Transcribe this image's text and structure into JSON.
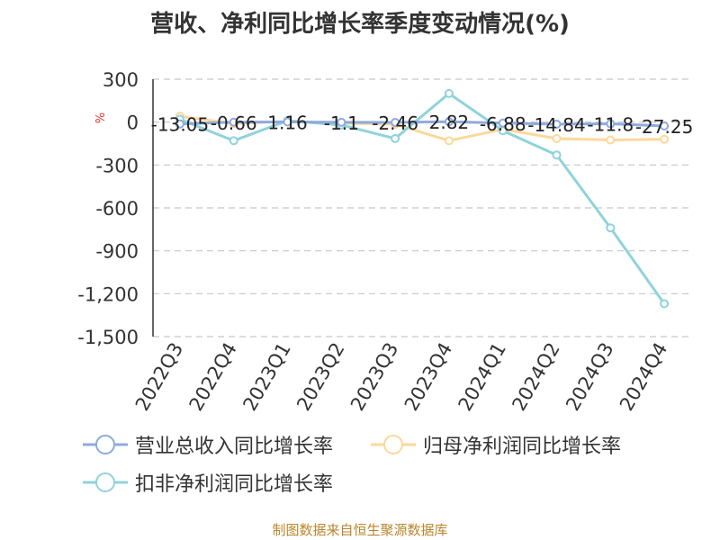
{
  "title": "营收、净利同比增长率季度变动情况(%)",
  "footer": "制图数据来自恒生聚源数据库",
  "chart_data": {
    "type": "line",
    "title": "营收、净利同比增长率季度变动情况(%)",
    "ylabel": "%",
    "ylim": [
      -1500,
      300
    ],
    "yticks": [
      300,
      0,
      -300,
      -600,
      -900,
      -1200,
      -1500
    ],
    "ytick_labels": [
      "300",
      "0",
      "-300",
      "-600",
      "-900",
      "-1,200",
      "-1,500"
    ],
    "grid": true,
    "legend_position": "bottom",
    "categories": [
      "2022Q3",
      "2022Q4",
      "2023Q1",
      "2023Q2",
      "2023Q3",
      "2023Q4",
      "2024Q1",
      "2024Q2",
      "2024Q3",
      "2024Q4"
    ],
    "series": [
      {
        "name": "营业总收入同比增长率",
        "color": "#8faadc",
        "values": [
          -13.05,
          -0.66,
          1.16,
          -1.1,
          -2.46,
          2.82,
          -6.88,
          -14.84,
          -11.8,
          -27.25
        ],
        "labels": [
          "-13.05",
          "-0.66",
          "1.16",
          "-1.1",
          "-2.46",
          "2.82",
          "-6.88",
          "-14.84",
          "-11.8",
          "-27.25"
        ]
      },
      {
        "name": "归母净利润同比增长率",
        "color": "#fcd89a",
        "values": [
          40,
          -10,
          5,
          -8,
          -15,
          -130,
          -50,
          -115,
          -125,
          -120
        ]
      },
      {
        "name": "扣非净利润同比增长率",
        "color": "#8fd3dc",
        "values": [
          20,
          -130,
          10,
          -20,
          -115,
          200,
          -60,
          -230,
          -740,
          -1270
        ]
      }
    ]
  }
}
